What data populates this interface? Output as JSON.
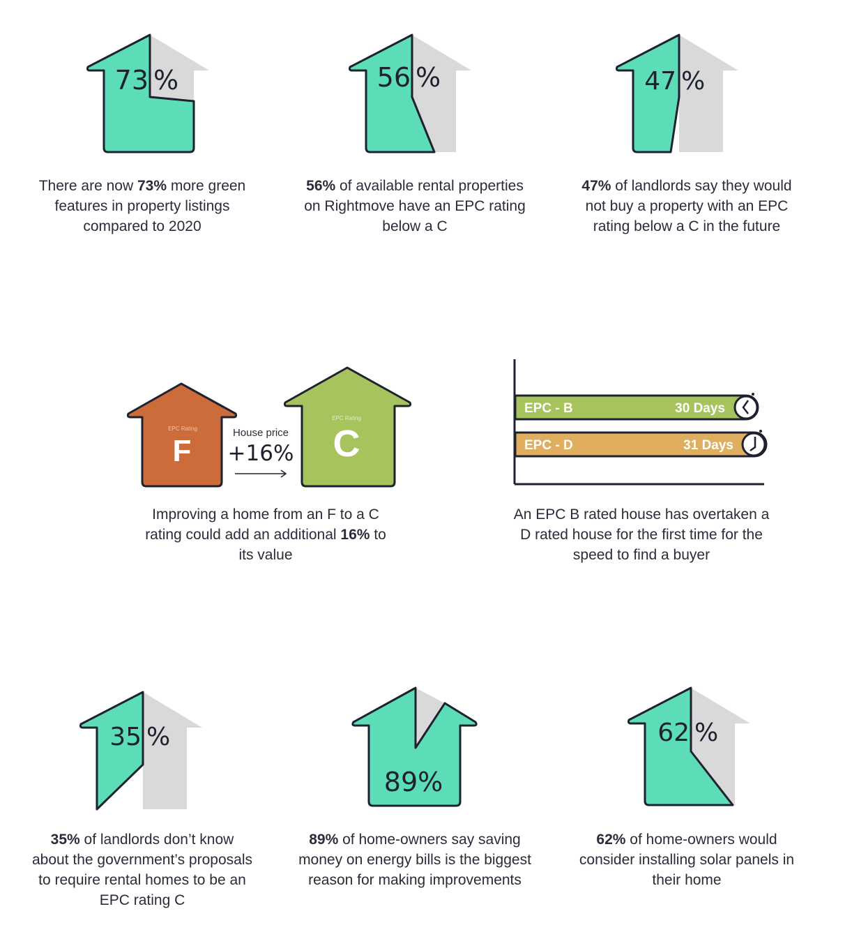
{
  "colors": {
    "mint": "#5ddcb8",
    "grey": "#d9d9d9",
    "outline": "#1e2130",
    "epc_f": "#cc6c3a",
    "epc_c": "#a6c35e",
    "epc_b_bar": "#a6c35e",
    "epc_d_bar": "#dfae5e"
  },
  "stats": [
    {
      "value": "73",
      "sign": "%",
      "fill_fraction": 0.73,
      "caption_bold": "73%",
      "caption_pre": "There are now ",
      "caption_post": " more green features in property listings compared to 2020"
    },
    {
      "value": "56",
      "sign": "%",
      "fill_fraction": 0.56,
      "caption_bold": "56%",
      "caption_pre": "",
      "caption_post": " of available rental properties on Rightmove have an EPC rating below a C"
    },
    {
      "value": "47",
      "sign": "%",
      "fill_fraction": 0.47,
      "caption_bold": "47%",
      "caption_pre": "",
      "caption_post": " of landlords say they would not buy a property with an EPC rating below a C in the future"
    },
    {
      "value": "35",
      "sign": "%",
      "fill_fraction": 0.35,
      "caption_bold": "35%",
      "caption_pre": "",
      "caption_post": " of landlords don’t know about the government’s proposals to require rental homes to be an EPC rating C"
    },
    {
      "value": "89%",
      "sign": "",
      "fill_fraction": 0.89,
      "caption_bold": "89%",
      "caption_pre": "",
      "caption_post": " of home-owners say saving money on energy bills is the biggest reason for making improvements"
    },
    {
      "value": "62",
      "sign": "%",
      "fill_fraction": 0.62,
      "caption_bold": "62%",
      "caption_pre": "",
      "caption_post": " of home-owners would consider installing solar panels in their home"
    }
  ],
  "epc_compare": {
    "left_small": "EPC Rating",
    "left_letter": "F",
    "right_small": "EPC Rating",
    "right_letter": "C",
    "price_label": "House price",
    "price_change": "+16%",
    "caption_pre": "Improving a home from an F to a C rating could add an additional ",
    "caption_bold": "16%",
    "caption_post": " to its value"
  },
  "speed_chart": {
    "bars": [
      {
        "label": "EPC - B",
        "days": "30 Days",
        "value": 30,
        "icon": "clock-icon"
      },
      {
        "label": "EPC - D",
        "days": "31 Days",
        "value": 31,
        "icon": "clock-icon"
      }
    ],
    "caption": "An EPC B rated house has overtaken a D rated house for the first time for the speed to find a buyer"
  }
}
